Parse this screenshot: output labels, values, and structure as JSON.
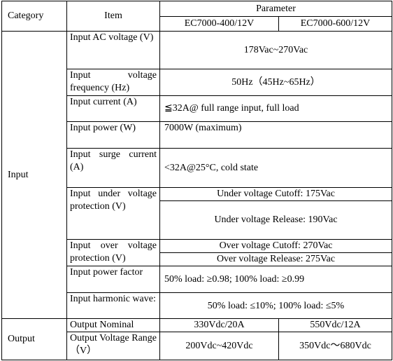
{
  "header": {
    "category": "Category",
    "item": "Item",
    "parameter": "Parameter",
    "models": [
      "EC7000-400/12V",
      "EC7000-600/12V"
    ]
  },
  "rows": [
    {
      "category": "Input",
      "items": [
        {
          "item": "Input AC voltage (V)",
          "values": [
            "178Vac~270Vac"
          ]
        },
        {
          "item": "Input voltage frequency (Hz)",
          "values": [
            "50Hz（45Hz~65Hz）"
          ]
        },
        {
          "item": "Input current (A)",
          "values": [
            "≦32A@ full range input, full load"
          ]
        },
        {
          "item": "Input power (W)",
          "values": [
            "7000W (maximum)"
          ]
        },
        {
          "item": "Input surge current (A)",
          "values": [
            "<32A@25°C, cold state"
          ]
        },
        {
          "item": "Input under voltage protection (V)",
          "values": [
            "Under voltage Cutoff: 175Vac",
            "Under voltage Release: 190Vac"
          ]
        },
        {
          "item": "Input over voltage protection (V)",
          "values": [
            "Over voltage Cutoff: 270Vac",
            "Over voltage Release: 275Vac"
          ]
        },
        {
          "item": "Input power factor",
          "values": [
            "50% load: ≥0.98; 100% load: ≥0.99"
          ]
        },
        {
          "item": "Input harmonic wave:",
          "values": [
            "50% load: ≤10%; 100% load: ≤5%"
          ]
        }
      ]
    },
    {
      "category": "Output",
      "items": [
        {
          "item": "Output Nominal",
          "values": [
            "330Vdc/20A",
            "550Vdc/12A"
          ]
        },
        {
          "item": "Output Voltage Range（V）",
          "values": [
            "200Vdc~420Vdc",
            "350Vdc～680Vdc"
          ]
        }
      ]
    }
  ]
}
